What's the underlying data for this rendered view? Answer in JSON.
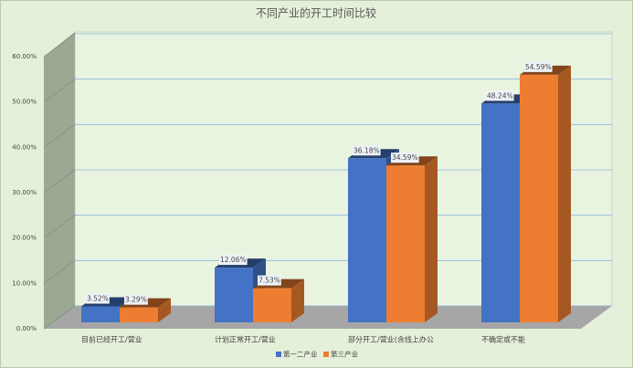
{
  "chart_data": {
    "type": "bar3d",
    "title": "不同产业的开工时间比较",
    "categories": [
      "目前已经开工/营业",
      "计划正常开工/营业",
      "部分开工/营业(含线上办公",
      "不确定或不能"
    ],
    "series": [
      {
        "name": "第一二产业",
        "color": "#4472c4",
        "values": [
          3.52,
          12.06,
          36.18,
          48.24
        ],
        "value_labels": [
          "3.52%",
          "12.06%",
          "36.18%",
          "48.24%"
        ]
      },
      {
        "name": "第三产业",
        "color": "#ed7d31",
        "values": [
          3.29,
          7.53,
          34.59,
          54.59
        ],
        "value_labels": [
          "3.29%",
          "7.53%",
          "34.59%",
          "54.59%"
        ]
      }
    ],
    "ylim": [
      0,
      60
    ],
    "yticks": [
      {
        "value": 0,
        "label": "0.00%"
      },
      {
        "value": 10,
        "label": "10.00%"
      },
      {
        "value": 20,
        "label": "20.00%"
      },
      {
        "value": 30,
        "label": "30.00%"
      },
      {
        "value": 40,
        "label": "40.00%"
      },
      {
        "value": 50,
        "label": "50.00%"
      },
      {
        "value": 60,
        "label": "60.00%"
      }
    ],
    "grid": true,
    "legend": "bottom"
  }
}
